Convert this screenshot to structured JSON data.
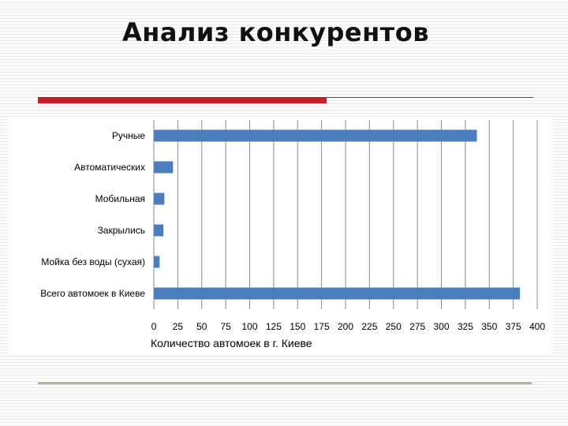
{
  "slide": {
    "title": "Анализ конкурентов"
  },
  "colors": {
    "bar": "#4a7ebf",
    "accent": "#cc1c2a",
    "grid": "#8c8c8c"
  },
  "chart_data": {
    "type": "bar",
    "orientation": "horizontal",
    "title": "",
    "categories": [
      "Ручные",
      "Автоматических",
      "Мобильная",
      "Закрылись",
      "Мойка без воды (сухая)",
      "Всего автомоек в Киеве"
    ],
    "values": [
      337,
      20,
      11,
      10,
      6,
      382
    ],
    "xlabel": "Количество автомоек в г. Киеве",
    "ylabel": "",
    "xlim": [
      0,
      400
    ],
    "xticks": [
      0,
      25,
      50,
      75,
      100,
      125,
      150,
      175,
      200,
      225,
      250,
      275,
      300,
      325,
      350,
      375,
      400
    ],
    "grid": "vertical",
    "legend": "none"
  }
}
